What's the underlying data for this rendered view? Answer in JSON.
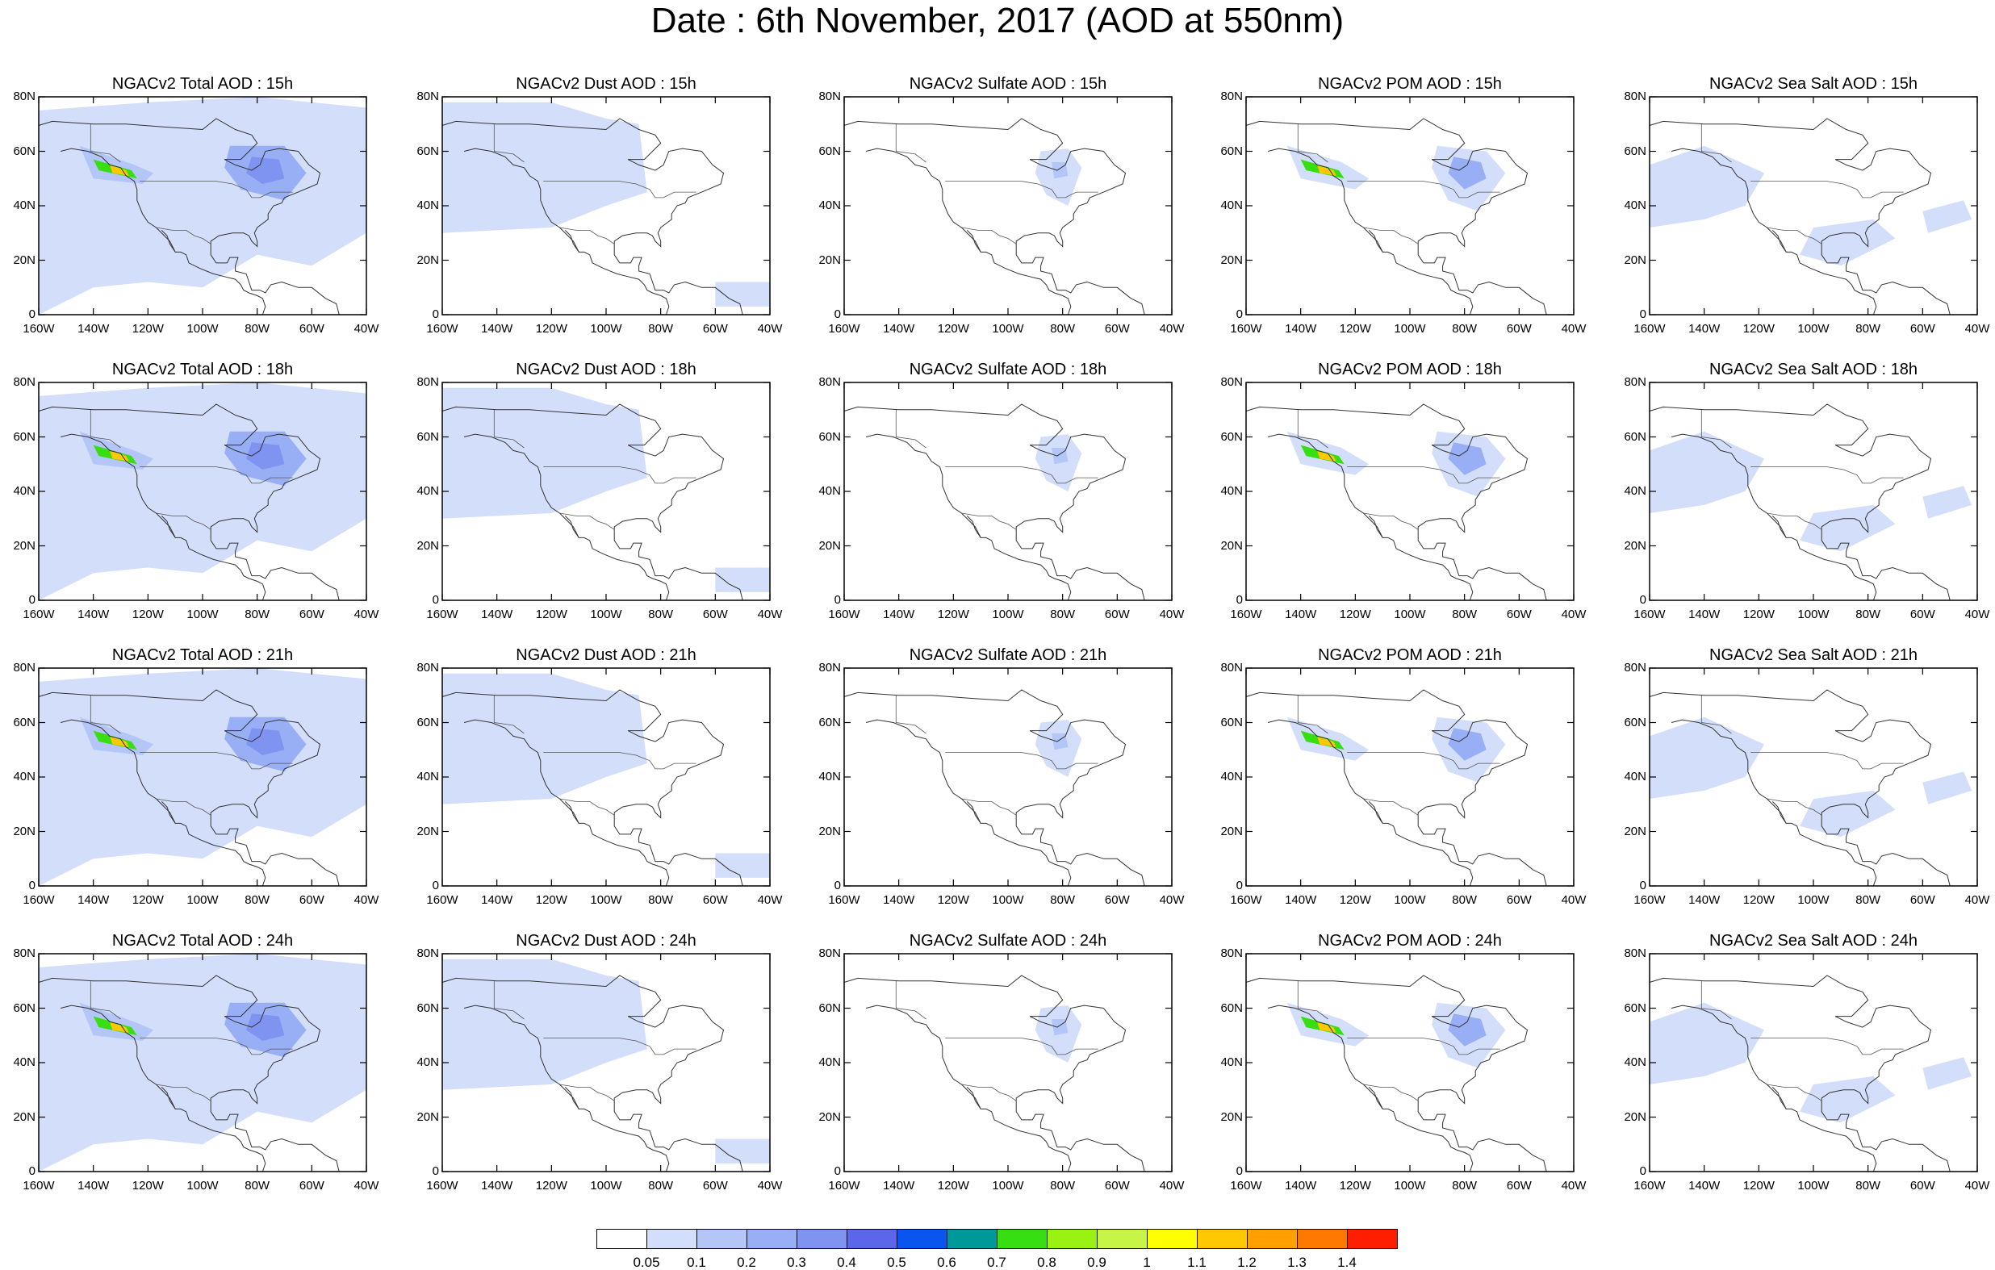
{
  "title": "Date : 6th November, 2017 (AOD at 550nm)",
  "lat_labels": [
    "80N",
    "60N",
    "40N",
    "20N",
    "0"
  ],
  "lon_labels": [
    "160W",
    "140W",
    "120W",
    "100W",
    "80W",
    "60W",
    "40W"
  ],
  "panels": [
    {
      "title": "NGACv2 Total AOD : 15h",
      "species": "total"
    },
    {
      "title": "NGACv2 Dust AOD : 15h",
      "species": "dust"
    },
    {
      "title": "NGACv2 Sulfate AOD : 15h",
      "species": "sulfate"
    },
    {
      "title": "NGACv2 POM AOD : 15h",
      "species": "pom"
    },
    {
      "title": "NGACv2 Sea Salt AOD : 15h",
      "species": "seasalt"
    },
    {
      "title": "NGACv2 Total AOD : 18h",
      "species": "total"
    },
    {
      "title": "NGACv2 Dust AOD : 18h",
      "species": "dust"
    },
    {
      "title": "NGACv2 Sulfate AOD : 18h",
      "species": "sulfate"
    },
    {
      "title": "NGACv2 POM AOD : 18h",
      "species": "pom"
    },
    {
      "title": "NGACv2 Sea Salt AOD : 18h",
      "species": "seasalt"
    },
    {
      "title": "NGACv2 Total AOD : 21h",
      "species": "total"
    },
    {
      "title": "NGACv2 Dust AOD : 21h",
      "species": "dust"
    },
    {
      "title": "NGACv2 Sulfate AOD : 21h",
      "species": "sulfate"
    },
    {
      "title": "NGACv2 POM AOD : 21h",
      "species": "pom"
    },
    {
      "title": "NGACv2 Sea Salt AOD : 21h",
      "species": "seasalt"
    },
    {
      "title": "NGACv2 Total AOD : 24h",
      "species": "total"
    },
    {
      "title": "NGACv2 Dust AOD : 24h",
      "species": "dust"
    },
    {
      "title": "NGACv2 Sulfate AOD : 24h",
      "species": "sulfate"
    },
    {
      "title": "NGACv2 POM AOD : 24h",
      "species": "pom"
    },
    {
      "title": "NGACv2 Sea Salt  AOD : 24h",
      "species": "seasalt"
    }
  ],
  "colorbar": {
    "labels": [
      "0.05",
      "0.1",
      "0.2",
      "0.3",
      "0.4",
      "0.5",
      "0.6",
      "0.7",
      "0.8",
      "0.9",
      "1",
      "1.1",
      "1.2",
      "1.3",
      "1.4"
    ],
    "colors": [
      "#ffffff",
      "#d3defb",
      "#b4c5f8",
      "#98aff6",
      "#7f93f0",
      "#5c66ea",
      "#0a54f0",
      "#009999",
      "#37de11",
      "#99f211",
      "#c8f347",
      "#ffff00",
      "#ffc800",
      "#ffa000",
      "#ff7800",
      "#ff1f00"
    ]
  }
}
